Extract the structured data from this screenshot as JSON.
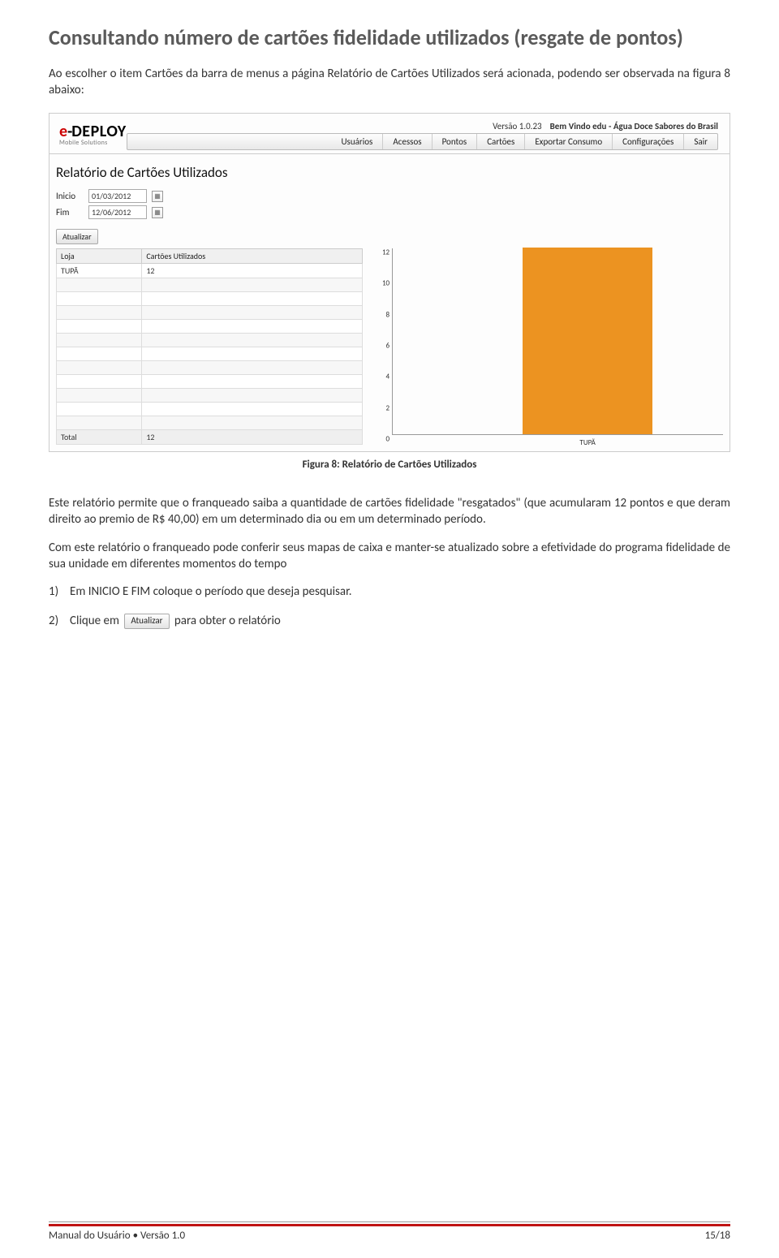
{
  "heading": "Consultando número de cartões fidelidade utilizados (resgate de pontos)",
  "intro": "Ao escolher o item Cartões da barra de menus a página Relatório de Cartões Utilizados será acionada, podendo ser observada na figura 8 abaixo:",
  "app": {
    "version_label": "Versão 1.0.23",
    "welcome_prefix": "Bem Vindo edu - ",
    "welcome_name": "Água Doce Sabores do Brasil",
    "logo_main": "DEPLOY",
    "logo_sub": "Mobile Solutions",
    "menu": [
      "Usuários",
      "Acessos",
      "Pontos",
      "Cartões",
      "Exportar Consumo",
      "Configurações",
      "Sair"
    ],
    "report_title": "Relatório de Cartões Utilizados",
    "inicio_label": "Inicio",
    "fim_label": "Fim",
    "inicio_value": "01/03/2012",
    "fim_value": "12/06/2012",
    "atualizar_label": "Atualizar"
  },
  "table": {
    "col1": "Loja",
    "col2": "Cartões Utilizados",
    "row_loja": "TUPÃ",
    "row_valor": "12",
    "total_label": "Total",
    "total_valor": "12"
  },
  "chart": {
    "ymax": 12,
    "yticks": [
      0,
      2,
      4,
      6,
      8,
      10,
      12
    ],
    "bar_value": 12,
    "bar_label": "TUPÃ",
    "bar_color": "#ec9321",
    "axis_color": "#999999",
    "bg": "#ffffff"
  },
  "caption": "Figura 8: Relatório de Cartões Utilizados",
  "p1": "Este relatório permite que o franqueado saiba a quantidade de cartões fidelidade \"resgatados\" (que acumularam 12 pontos e que deram direito ao premio de R$ 40,00) em um determinado dia ou em um determinado período.",
  "p2": "Com este relatório o franqueado pode conferir seus mapas de caixa e manter-se atualizado sobre a efetividade do programa fidelidade de sua unidade em diferentes momentos do tempo",
  "step1_n": "1)",
  "step1": "Em INICIO E FIM coloque o período que deseja pesquisar.",
  "step2_n": "2)",
  "step2_before": "Clique em",
  "step2_btn": "Atualizar",
  "step2_after": "para obter o relatório",
  "footer_left": "Manual do Usuário • Versão 1.0",
  "footer_right": "15/18"
}
